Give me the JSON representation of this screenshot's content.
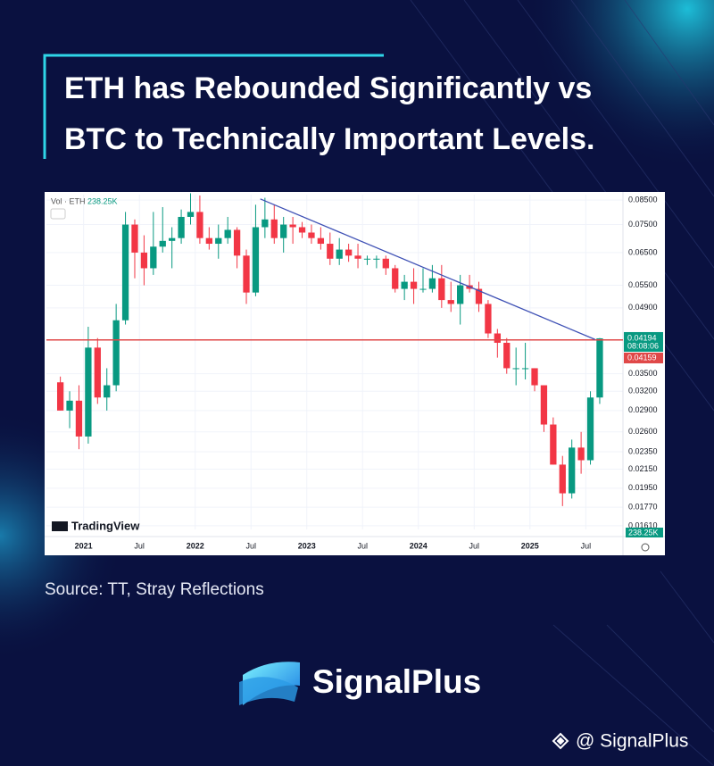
{
  "title": [
    "ETH has Rebounded Significantly vs",
    "BTC to Technically Important Levels."
  ],
  "source": "Source: TT, Stray Reflections",
  "brand": "SignalPlus",
  "handle": "@ SignalPlus",
  "chart_data": {
    "type": "candlestick",
    "volume_label": "Vol · ETH",
    "last_volume": "238.25K",
    "watermark": "TradingView",
    "x": [
      "2020-10",
      "2020-11",
      "2020-12",
      "2021-01",
      "2021-02",
      "2021-03",
      "2021-04",
      "2021-05",
      "2021-06",
      "2021-07",
      "2021-08",
      "2021-09",
      "2021-10",
      "2021-11",
      "2021-12",
      "2022-01",
      "2022-02",
      "2022-03",
      "2022-04",
      "2022-05",
      "2022-06",
      "2022-07",
      "2022-08",
      "2022-09",
      "2022-10",
      "2022-11",
      "2022-12",
      "2023-01",
      "2023-02",
      "2023-03",
      "2023-04",
      "2023-05",
      "2023-06",
      "2023-07",
      "2023-08",
      "2023-09",
      "2023-10",
      "2023-11",
      "2023-12",
      "2024-01",
      "2024-02",
      "2024-03",
      "2024-04",
      "2024-05",
      "2024-06",
      "2024-07",
      "2024-08",
      "2024-09",
      "2024-10",
      "2024-11",
      "2024-12",
      "2025-01",
      "2025-02",
      "2025-03",
      "2025-04",
      "2025-05",
      "2025-06",
      "2025-07",
      "2025-08"
    ],
    "open": [
      0.0335,
      0.029,
      0.0305,
      0.0254,
      0.04,
      0.031,
      0.033,
      0.046,
      0.075,
      0.065,
      0.06,
      0.067,
      0.069,
      0.07,
      0.078,
      0.08,
      0.07,
      0.068,
      0.07,
      0.073,
      0.064,
      0.053,
      0.074,
      0.077,
      0.07,
      0.075,
      0.074,
      0.072,
      0.07,
      0.068,
      0.063,
      0.066,
      0.064,
      0.063,
      0.063,
      0.063,
      0.06,
      0.054,
      0.056,
      0.054,
      0.054,
      0.057,
      0.051,
      0.05,
      0.055,
      0.054,
      0.05,
      0.043,
      0.041,
      0.036,
      0.036,
      0.036,
      0.033,
      0.027,
      0.022,
      0.019,
      0.024,
      0.0225,
      0.031
    ],
    "high": [
      0.0345,
      0.032,
      0.033,
      0.0445,
      0.042,
      0.036,
      0.05,
      0.08,
      0.077,
      0.071,
      0.08,
      0.082,
      0.074,
      0.081,
      0.088,
      0.087,
      0.074,
      0.075,
      0.078,
      0.074,
      0.066,
      0.083,
      0.086,
      0.083,
      0.078,
      0.078,
      0.076,
      0.075,
      0.074,
      0.072,
      0.07,
      0.068,
      0.068,
      0.064,
      0.064,
      0.064,
      0.061,
      0.058,
      0.06,
      0.06,
      0.061,
      0.061,
      0.056,
      0.058,
      0.058,
      0.056,
      0.051,
      0.044,
      0.042,
      0.04,
      0.041,
      0.036,
      0.033,
      0.028,
      0.023,
      0.025,
      0.026,
      0.032,
      0.042
    ],
    "low": [
      0.029,
      0.0265,
      0.0238,
      0.0245,
      0.03,
      0.029,
      0.032,
      0.045,
      0.057,
      0.055,
      0.058,
      0.065,
      0.06,
      0.068,
      0.075,
      0.068,
      0.066,
      0.063,
      0.068,
      0.06,
      0.05,
      0.052,
      0.07,
      0.068,
      0.065,
      0.068,
      0.07,
      0.068,
      0.066,
      0.061,
      0.061,
      0.062,
      0.06,
      0.061,
      0.06,
      0.058,
      0.053,
      0.051,
      0.05,
      0.053,
      0.053,
      0.049,
      0.048,
      0.045,
      0.053,
      0.048,
      0.042,
      0.038,
      0.035,
      0.033,
      0.034,
      0.032,
      0.026,
      0.022,
      0.0178,
      0.0185,
      0.021,
      0.022,
      0.03
    ],
    "close": [
      0.029,
      0.0305,
      0.0254,
      0.04,
      0.031,
      0.033,
      0.046,
      0.075,
      0.065,
      0.06,
      0.067,
      0.069,
      0.07,
      0.078,
      0.08,
      0.07,
      0.068,
      0.07,
      0.073,
      0.064,
      0.053,
      0.074,
      0.077,
      0.07,
      0.075,
      0.074,
      0.072,
      0.07,
      0.068,
      0.063,
      0.066,
      0.064,
      0.063,
      0.063,
      0.063,
      0.06,
      0.054,
      0.056,
      0.054,
      0.054,
      0.057,
      0.051,
      0.05,
      0.055,
      0.054,
      0.05,
      0.043,
      0.041,
      0.036,
      0.036,
      0.036,
      0.033,
      0.027,
      0.022,
      0.019,
      0.024,
      0.0225,
      0.031,
      0.04194
    ],
    "up_color": "#089981",
    "down_color": "#f23645",
    "xlim": [
      "2020-09",
      "2025-11"
    ],
    "xticks": [
      {
        "value": "2021-01",
        "label": "2021"
      },
      {
        "value": "2021-07",
        "label": "Jul"
      },
      {
        "value": "2022-01",
        "label": "2022"
      },
      {
        "value": "2022-07",
        "label": "Jul"
      },
      {
        "value": "2023-01",
        "label": "2023"
      },
      {
        "value": "2023-07",
        "label": "Jul"
      },
      {
        "value": "2024-01",
        "label": "2024"
      },
      {
        "value": "2024-07",
        "label": "Jul"
      },
      {
        "value": "2025-01",
        "label": "2025"
      },
      {
        "value": "2025-07",
        "label": "Jul"
      }
    ],
    "ylim": [
      0.0158,
      0.0874
    ],
    "log_scale": true,
    "grid": true,
    "yticks": [
      {
        "value": 0.0161,
        "label": "0.01610"
      },
      {
        "value": 0.0177,
        "label": "0.01770"
      },
      {
        "value": 0.0195,
        "label": "0.01950"
      },
      {
        "value": 0.0215,
        "label": "0.02150"
      },
      {
        "value": 0.0235,
        "label": "0.02350"
      },
      {
        "value": 0.026,
        "label": "0.02600"
      },
      {
        "value": 0.029,
        "label": "0.02900"
      },
      {
        "value": 0.032,
        "label": "0.03200"
      },
      {
        "value": 0.035,
        "label": "0.03500"
      },
      {
        "value": 0.049,
        "label": "0.04900"
      },
      {
        "value": 0.055,
        "label": "0.05500"
      },
      {
        "value": 0.065,
        "label": "0.06500"
      },
      {
        "value": 0.075,
        "label": "0.07500"
      },
      {
        "value": 0.085,
        "label": "0.08500"
      }
    ],
    "trendline": {
      "x": [
        "2022-08",
        "2025-08"
      ],
      "y": [
        0.0855,
        0.0417
      ],
      "color": "#3f51b5"
    },
    "hline": {
      "value": 0.04159,
      "color": "#e04848"
    },
    "last_price": 0.04194,
    "countdown": "08:08:06"
  }
}
